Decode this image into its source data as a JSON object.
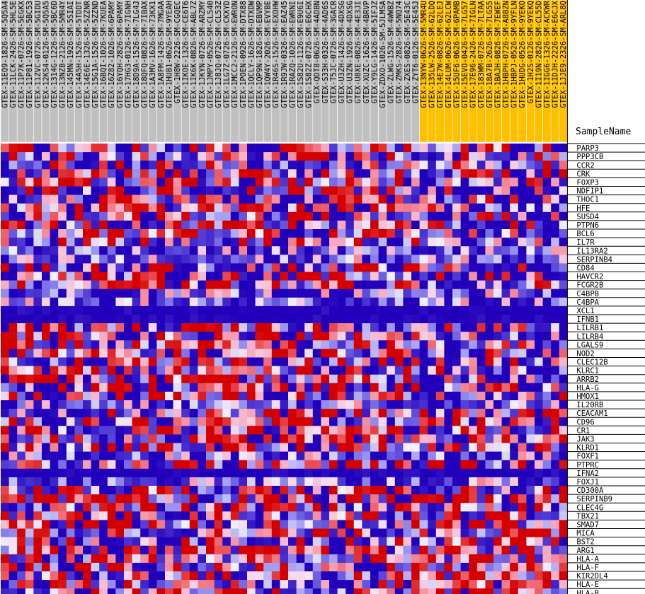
{
  "chart_data": {
    "type": "heatmap",
    "header_label": "SampleName",
    "colors": {
      "sample_bg": "#c0c0c0",
      "sample_bg_highlight": "#ffc000",
      "low": "#2200bb",
      "mid": "#f2f0ff",
      "high": "#d40000",
      "grid": "#000000"
    },
    "samples": [
      "GTEX-11EQ9-1826-SM-5Q5A4",
      "GTEX-11LCK-2426-SM-5HL5E",
      "GTEX-11P7K-0726-SM-5EGKX",
      "GTEX-11P81-1926-SM-5BC53",
      "GTEX-11ZVC-0726-SM-5GIDU",
      "GTEX-12KS4-0126-SM-5Q5A5",
      "GTEX-1314G-1226-SM-5BC6D",
      "GTEX-13NZB-2126-SM-5MR4Y",
      "GTEX-145MN-1926-SM-5SIAI",
      "GTEX-14A5H-1526-SM-5TDDT",
      "GTEX-14E6E-1326-SM-5ZZNR",
      "GTEX-15G1A-1526-SM-5ZZND",
      "GTEX-16BQI-1026-SM-7KUEA",
      "GTEX-16Z82-1026-SM-6PAMY",
      "GTEX-16YQH-2826-SM-6PAMY",
      "GTEX-17HG3-0126-SM-7IGNH",
      "GTEX-18D9A-1526-SM-7LG4J",
      "GTEX-18QFQ-0826-SM-7IBAX",
      "GTEX-1A3MV-1626-SM-73KX1",
      "GTEX-1A8FM-1426-SM-7MGAA",
      "GTEX-1HUB1-0626-SM-9YEAH",
      "GTEX-1H8W-2226-SM-CGQEC",
      "GTEX-1IKOE-1326-SM-CE6T6",
      "GTEX-1IK6K-0826-SM-ABL7Z",
      "GTEX-1JKYN-0726-SM-ARZMY",
      "GTEX-1JMPY-0526-SM-CL540",
      "GTEX-1J8JQ-0726-SM-CL53Z",
      "GTEX-1LG7Z-0726-SM-CKXYD",
      "GTEX-1MCC2-2126-SM-EWRON",
      "GTEX-1POEN-0926-SM-DTX88",
      "GTEX-1QCLY-1626-SM-DTXDW",
      "GTEX-1QP9N-1826-SM-EBVMP",
      "GTEX-1QW4Y-2026-SM-EVYBE",
      "GTEX-1R46S-1526-SM-EXOHW",
      "GTEX-1R9JW-0326-SM-EAZ45",
      "GTEX-1RAZQ-1026-SM-EWRNI",
      "GTEX-1S82U-1126-SM-E9U6I",
      "GTEX-1S82Z-0726-SM-E6CHX",
      "GTEX-QDT8-0626-SM-4ADBN",
      "GTEX-S33H-0326-SM-4AD6S",
      "GTEX-T5JC-0726-SM-3GACR",
      "GTEX-U3ZH-1426-SM-4DXSG",
      "GTEX-U3ZN-1926-SM-4DXSG",
      "GTEX-U8XE-0826-SM-4E3JI",
      "GTEX-XUZC-1626-SM-4BRVP",
      "GTEX-Y9LG-1426-SM-5IFJZ",
      "GTEX-ZDXO-1026-SM-5JLMSA",
      "GTEX-ZLWG-1526-SM-4WWBZ",
      "GTEX-ZMKS-2826-SM-5NQ74",
      "GTEX-ZXES-0826-SM-5E43C",
      "GTEX-ZYT6-0126-SM-5E45J",
      "GTEX-13NYW-0626-SM-5MR4U",
      "GTEX-135LW-2526-SM-62LDQ",
      "GTEX-14E7W-0826-SM-62LEJ",
      "GTEX-14LUM-0626-SM-62LCW",
      "GTEX-15UF6-0626-SM-6PAMB",
      "GTEX-15EVO-0426-SM-7LG57",
      "GTEX-17E96-2426-SM-7IGLN",
      "GTEX-183WM-0726-SM-7LTAA",
      "GTEX-18A7B-2626-SM-7LG55",
      "GTEX-1BAJH-0826-SM-7EWEF",
      "GTEX-1HBPH-0726-SM-A8BZN",
      "GTEX-1HBPJ-0526-SM-9YFLN",
      "GTEX-1HUDG-0526-SM-9YEKO",
      "GTEX-1H2S-0126-SM-9YEKQ",
      "GTEX-1I19N-2826-SM-CL55D",
      "GTEX-1IGG6-1326-SM-ACKWR",
      "GTEX-1IDJH-2226-SM-E6CJX",
      "GTEX-1JJE9-2326-SM-ARL8Q"
    ],
    "highlighted_sample_start": 51,
    "genes": [
      "PARP3",
      "PPP3CB",
      "CCR2",
      "CRK",
      "FOXP3",
      "NDFIP1",
      "THOC1",
      "HFE",
      "SUSD4",
      "PTPN6",
      "BCL6",
      "IL7R",
      "IL13RA2",
      "SERPINB4",
      "CD84",
      "HAVCR2",
      "FCGR2B",
      "C4BPB",
      "C4BPA",
      "XCL1",
      "IFNB1",
      "LILRB1",
      "LILRB4",
      "LGALS9",
      "NOD2",
      "CLEC12B",
      "KLRC1",
      "ARRB2",
      "HLA-G",
      "HMOX1",
      "IL20RB",
      "CEACAM1",
      "CD96",
      "CR1",
      "JAK3",
      "KLRD1",
      "FOXF1",
      "PTPRC",
      "IFNA2",
      "FOXJ1",
      "CD300A",
      "SERPINB9",
      "CLEC4G",
      "TBX21",
      "SMAD7",
      "MICA",
      "BST2",
      "ARG1",
      "HLA-A",
      "HLA-F",
      "KIR2DL4",
      "HLA-E",
      "HLA-B"
    ]
  }
}
